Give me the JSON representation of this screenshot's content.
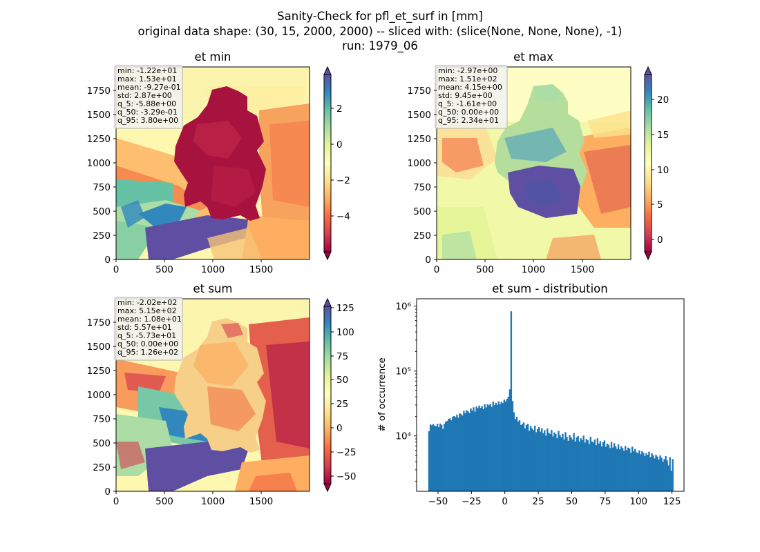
{
  "figure": {
    "suptitle": [
      "Sanity-Check for pfl_et_surf in [mm]",
      "original data shape: (30, 15, 2000, 2000) -- sliced with: (slice(None, None, None), -1)",
      "run: 1979_06"
    ]
  },
  "colors": {
    "cmap": "Spectral",
    "hist_bar": "#1f77b4",
    "stats_box_bg": "#f2f2f2",
    "stats_box_edge": "#b0b0b0"
  },
  "chart_data": [
    {
      "type": "heatmap",
      "title": "et min",
      "xlim": [
        0,
        2000
      ],
      "ylim": [
        0,
        2000
      ],
      "xticks": [
        "0",
        "500",
        "1000",
        "1500"
      ],
      "yticks": [
        "0",
        "250",
        "500",
        "750",
        "1000",
        "1250",
        "1500",
        "1750"
      ],
      "colormap": "Spectral",
      "colorbar": {
        "range": [
          -5.5,
          3.8
        ],
        "ticks": [
          "2",
          "0",
          "−2",
          "−4"
        ],
        "tick_values": [
          2,
          0,
          -2,
          -4
        ],
        "extend": "both"
      },
      "stats": [
        "min: -1.22e+01",
        "max: 1.53e+01",
        "mean: -9.27e-01",
        "std: 2.87e+00",
        "q_5: -5.88e+00",
        "q_50: -3.29e-01",
        "q_95: 3.80e+00"
      ]
    },
    {
      "type": "heatmap",
      "title": "et max",
      "xlim": [
        0,
        2000
      ],
      "ylim": [
        0,
        2000
      ],
      "xticks": [
        "0",
        "500",
        "1000",
        "1500"
      ],
      "yticks": [
        "0",
        "250",
        "500",
        "750",
        "1000",
        "1250",
        "1500",
        "1750"
      ],
      "colormap": "Spectral",
      "colorbar": {
        "range": [
          -1.6,
          23.4
        ],
        "ticks": [
          "20",
          "15",
          "10",
          "5",
          "0"
        ],
        "tick_values": [
          20,
          15,
          10,
          5,
          0
        ],
        "extend": "both"
      },
      "stats": [
        "min: -2.97e+00",
        "max: 1.51e+02",
        "mean: 4.15e+00",
        "std: 9.45e+00",
        "q_5: -1.61e+00",
        "q_50: 0.00e+00",
        "q_95: 2.34e+01"
      ]
    },
    {
      "type": "heatmap",
      "title": "et sum",
      "xlim": [
        0,
        2000
      ],
      "ylim": [
        0,
        2000
      ],
      "xticks": [
        "0",
        "500",
        "1000",
        "1500"
      ],
      "yticks": [
        "0",
        "250",
        "500",
        "750",
        "1000",
        "1250",
        "1500",
        "1750"
      ],
      "colormap": "Spectral",
      "colorbar": {
        "range": [
          -57.3,
          126
        ],
        "ticks": [
          "125",
          "100",
          "75",
          "50",
          "25",
          "0",
          "−25",
          "−50"
        ],
        "tick_values": [
          125,
          100,
          75,
          50,
          25,
          0,
          -25,
          -50
        ],
        "extend": "both"
      },
      "stats": [
        "min: -2.02e+02",
        "max: 5.15e+02",
        "mean: 1.08e+01",
        "std: 5.57e+01",
        "q_5: -5.73e+01",
        "q_50: 0.00e+00",
        "q_95: 1.26e+02"
      ]
    },
    {
      "type": "bar",
      "title": "et sum - distribution",
      "ylabel": "# of occurrence",
      "yscale": "log",
      "xlim": [
        -66,
        134
      ],
      "ylim": [
        1400,
        1300000
      ],
      "xticks": [
        "−50",
        "−25",
        "0",
        "25",
        "50",
        "75",
        "100",
        "125"
      ],
      "xtick_values": [
        -50,
        -25,
        0,
        25,
        50,
        75,
        100,
        125
      ],
      "yticks": [
        "10⁴",
        "10⁵",
        "10⁶"
      ],
      "ytick_values": [
        10000,
        100000,
        1000000
      ],
      "bin_start": -57.3,
      "bin_end": 126,
      "counts": [
        11800,
        15000,
        14600,
        15200,
        14400,
        14000,
        15400,
        13600,
        15500,
        14800,
        12800,
        15400,
        16400,
        17000,
        18200,
        18600,
        17400,
        19800,
        20200,
        19500,
        21300,
        19000,
        22300,
        21700,
        20600,
        24400,
        22400,
        24800,
        23900,
        22500,
        26500,
        24600,
        27600,
        23700,
        28400,
        26700,
        29300,
        27100,
        28800,
        25800,
        30800,
        27400,
        30600,
        29600,
        31200,
        28000,
        33800,
        29900,
        32400,
        30300,
        34000,
        30600,
        33500,
        32100,
        36200,
        34000,
        37200,
        40300,
        52300,
        833000,
        34500,
        23100,
        18100,
        19600,
        16700,
        17400,
        14700,
        15300,
        16100,
        13100,
        14800,
        15300,
        12000,
        14200,
        13000,
        12300,
        14400,
        11400,
        12700,
        13600,
        11600,
        13100,
        11000,
        12200,
        10100,
        13000,
        11200,
        10700,
        12400,
        9800,
        11300,
        10700,
        9200,
        12000,
        10300,
        9500,
        10800,
        8800,
        11400,
        9600,
        8400,
        10300,
        9500,
        8800,
        11100,
        8200,
        9500,
        10000,
        8200,
        9200,
        8600,
        10100,
        7900,
        9000,
        8600,
        7500,
        9700,
        8200,
        7900,
        8800,
        7200,
        9200,
        7600,
        8300,
        6900,
        8000,
        8500,
        6800,
        7600,
        7300,
        6500,
        8100,
        6600,
        7700,
        6900,
        6300,
        7400,
        6200,
        6900,
        6500,
        5900,
        7000,
        6000,
        6600,
        6400,
        5500,
        6800,
        5800,
        6300,
        5600,
        5400,
        6000,
        5200,
        5800,
        5500,
        4900,
        5400,
        5100,
        5700,
        4700,
        5400,
        5000,
        4500,
        5100,
        4800,
        4300,
        5000,
        4600,
        4000,
        4400,
        4900,
        4200,
        3500,
        4700,
        2900,
        4400
      ]
    }
  ]
}
